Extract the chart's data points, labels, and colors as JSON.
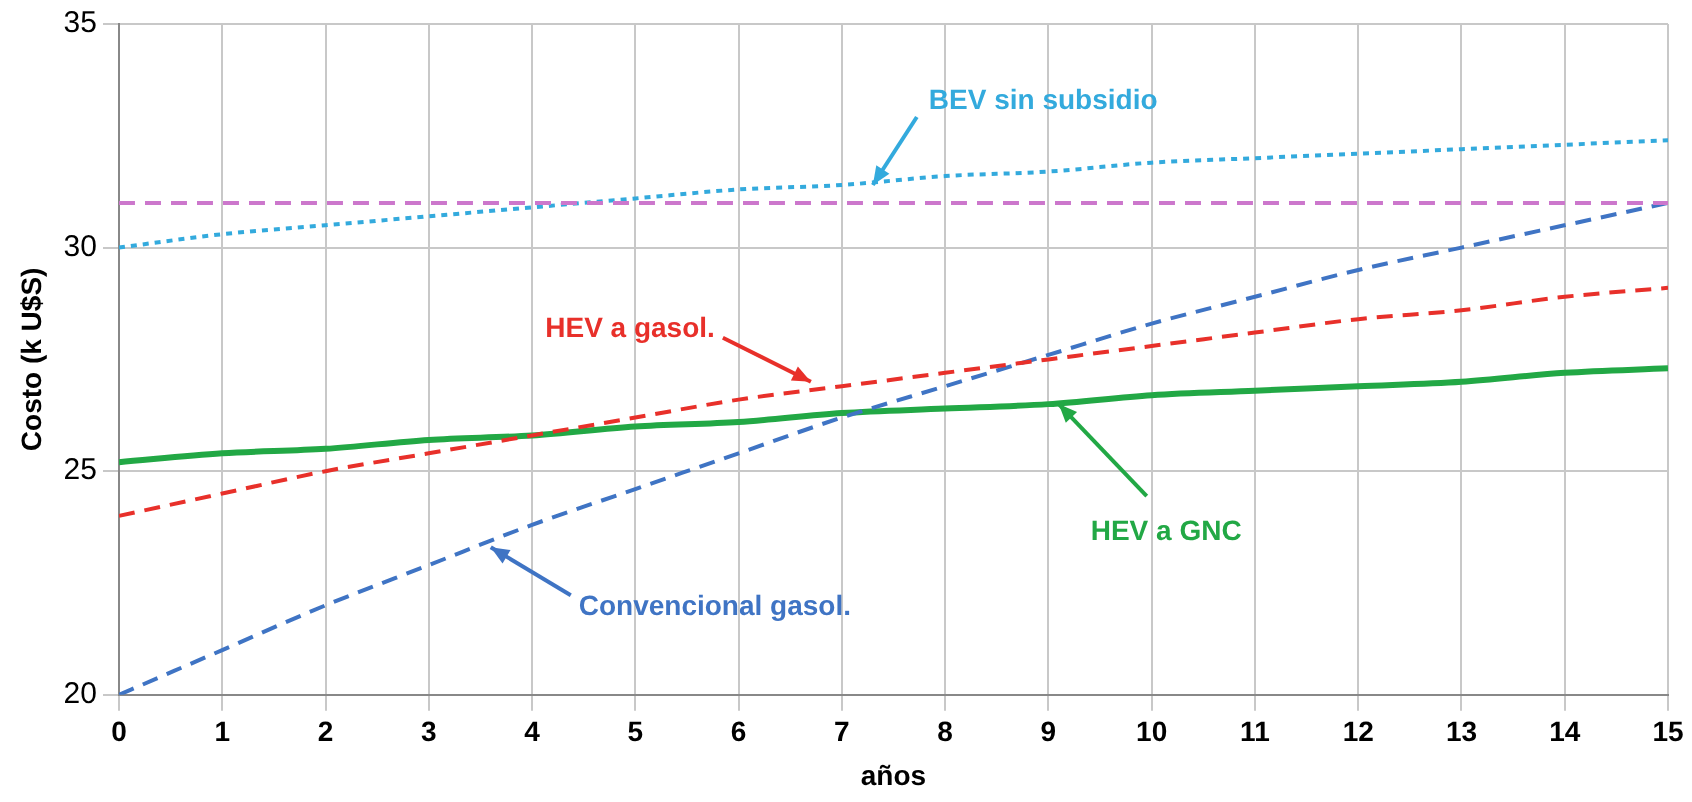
{
  "chart_data": {
    "type": "line",
    "xlabel": "años",
    "ylabel": "Costo (k U$S)",
    "x": [
      0,
      1,
      2,
      3,
      4,
      5,
      6,
      7,
      8,
      9,
      10,
      11,
      12,
      13,
      14,
      15
    ],
    "xlim": [
      0,
      15
    ],
    "xticks": [
      0,
      1,
      2,
      3,
      4,
      5,
      6,
      7,
      8,
      9,
      10,
      11,
      12,
      13,
      14,
      15
    ],
    "ylim": [
      20,
      35
    ],
    "yticks": [
      20,
      25,
      30,
      35
    ],
    "grid": true,
    "legend": false,
    "marker": "none",
    "series": [
      {
        "color": "#cc77cc",
        "line_style": "dashed",
        "values": [
          31,
          31,
          31,
          31,
          31,
          31,
          31,
          31,
          31,
          31,
          31,
          31,
          31,
          31,
          31,
          31
        ]
      },
      {
        "color": "#33aadd",
        "line_style": "dotted",
        "values": [
          30,
          30.3,
          30.5,
          30.7,
          30.9,
          31.1,
          31.3,
          31.4,
          31.6,
          31.7,
          31.9,
          32,
          32.1,
          32.2,
          32.3,
          32.4
        ]
      },
      {
        "color": "#e8302a",
        "line_style": "dashed",
        "values": [
          24,
          24.5,
          25,
          25.4,
          25.8,
          26.2,
          26.6,
          26.9,
          27.2,
          27.5,
          27.8,
          28.1,
          28.4,
          28.6,
          28.9,
          29.1
        ]
      },
      {
        "color": "#3f74c4",
        "line_style": "dashed",
        "values": [
          20,
          21,
          22,
          22.9,
          23.8,
          24.6,
          25.4,
          26.2,
          26.9,
          27.6,
          28.3,
          28.9,
          29.5,
          30,
          30.5,
          31
        ]
      },
      {
        "color": "#22a845",
        "line_style": "solid",
        "values": [
          25.2,
          25.4,
          25.5,
          25.7,
          25.8,
          26,
          26.1,
          26.3,
          26.4,
          26.5,
          26.7,
          26.8,
          26.9,
          27,
          27.2,
          27.3
        ]
      }
    ],
    "annotations": [
      {
        "text": "BEV sin subsidio",
        "x": 7.3,
        "y": 31.4
      },
      {
        "text": "HEV a gasol.",
        "x": 6.7,
        "y": 27
      },
      {
        "text": "HEV a GNC",
        "x": 9.1,
        "y": 26.5
      },
      {
        "text": "Convencional gasol.",
        "x": 3.6,
        "y": 23.3
      }
    ]
  }
}
